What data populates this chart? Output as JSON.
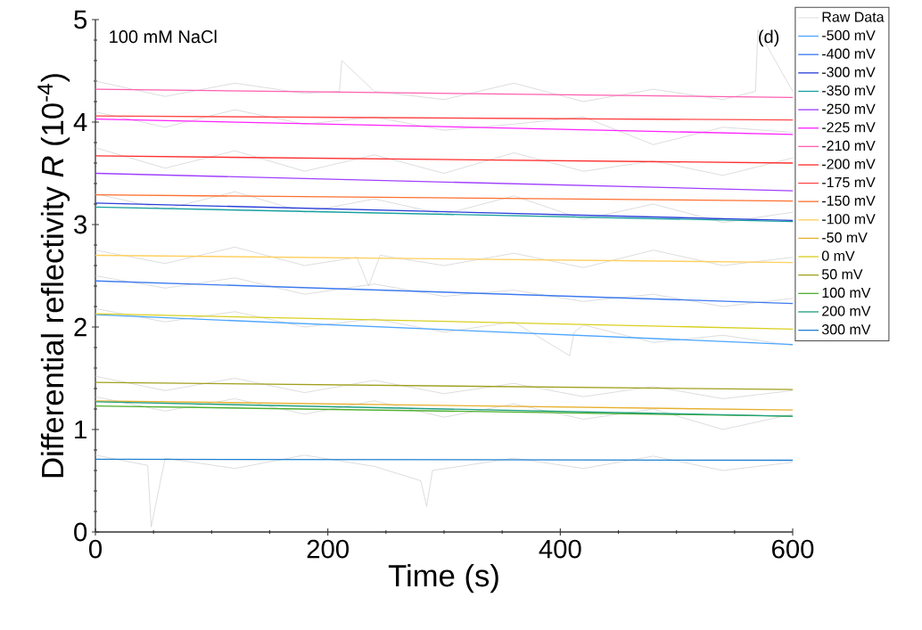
{
  "chart_data": {
    "type": "line",
    "xlabel": "Time (s)",
    "ylabel": "Differential reflectivity *R* (10$^{-4}$)",
    "annotations": [
      "100 mM NaCl",
      "(d)"
    ],
    "x": [
      0,
      600
    ],
    "xlim": [
      0,
      600
    ],
    "ylim": [
      0,
      5
    ],
    "xticks": [
      0,
      200,
      400,
      600
    ],
    "yticks": [
      0,
      1,
      2,
      3,
      4,
      5
    ],
    "legend": "right",
    "series": [
      {
        "name": "Raw Data",
        "color": "#cccccc",
        "x": [
          0,
          60,
          120,
          180,
          210,
          212,
          240,
          300,
          360,
          420,
          480,
          540,
          568,
          570,
          600,
          null,
          0,
          60,
          120,
          180,
          240,
          300,
          360,
          420,
          480,
          540,
          600,
          null,
          0,
          60,
          120,
          180,
          240,
          300,
          360,
          420,
          480,
          540,
          600,
          null,
          0,
          60,
          120,
          180,
          240,
          300,
          360,
          420,
          480,
          540,
          600,
          null,
          0,
          60,
          120,
          180,
          225,
          235,
          245,
          300,
          360,
          420,
          480,
          540,
          600,
          null,
          0,
          60,
          120,
          180,
          240,
          300,
          360,
          420,
          480,
          540,
          600,
          null,
          0,
          60,
          120,
          180,
          240,
          300,
          360,
          408,
          412,
          420,
          480,
          540,
          600,
          null,
          0,
          60,
          120,
          180,
          240,
          300,
          360,
          420,
          480,
          540,
          600,
          null,
          0,
          60,
          120,
          180,
          240,
          300,
          360,
          420,
          480,
          540,
          600,
          null,
          0,
          45,
          48,
          60,
          120,
          180,
          240,
          280,
          285,
          290,
          360,
          420,
          480,
          540,
          600
        ],
        "values": [
          4.4,
          4.25,
          4.38,
          4.28,
          4.3,
          4.6,
          4.3,
          4.22,
          4.38,
          4.2,
          4.32,
          4.22,
          4.3,
          4.9,
          4.3,
          null,
          4.1,
          3.95,
          4.12,
          3.98,
          4.05,
          3.92,
          3.98,
          4.05,
          3.78,
          3.95,
          3.9,
          null,
          3.75,
          3.55,
          3.72,
          3.52,
          3.68,
          3.5,
          3.7,
          3.52,
          3.62,
          3.48,
          3.65,
          null,
          3.3,
          3.15,
          3.32,
          3.12,
          3.25,
          3.1,
          3.28,
          3.05,
          3.2,
          3.02,
          3.12,
          null,
          2.75,
          2.62,
          2.78,
          2.6,
          2.68,
          2.4,
          2.7,
          2.6,
          2.72,
          2.58,
          2.75,
          2.6,
          2.68,
          null,
          2.5,
          2.38,
          2.48,
          2.32,
          2.42,
          2.3,
          2.36,
          2.25,
          2.32,
          2.2,
          2.28,
          null,
          2.18,
          2.05,
          2.15,
          2.0,
          2.08,
          1.95,
          2.05,
          1.72,
          1.95,
          2.02,
          1.85,
          1.92,
          1.82,
          null,
          1.52,
          1.38,
          1.5,
          1.36,
          1.48,
          1.35,
          1.45,
          1.32,
          1.42,
          1.3,
          1.38,
          null,
          1.32,
          1.18,
          1.3,
          1.15,
          1.28,
          1.12,
          1.25,
          1.1,
          1.2,
          1.0,
          1.15,
          null,
          0.75,
          0.65,
          0.05,
          0.72,
          0.62,
          0.75,
          0.64,
          0.5,
          0.25,
          0.6,
          0.72,
          0.62,
          0.74,
          0.6,
          0.68
        ]
      },
      {
        "name": "-500 mV",
        "color": "#4da6ff",
        "values": [
          2.12,
          1.83
        ]
      },
      {
        "name": "-400 mV",
        "color": "#3d7bef",
        "values": [
          2.45,
          2.23
        ]
      },
      {
        "name": "-300 mV",
        "color": "#2a3fd8",
        "values": [
          3.21,
          3.04
        ]
      },
      {
        "name": "-350 mV",
        "color": "#1aa0a0",
        "values": [
          3.17,
          3.03
        ]
      },
      {
        "name": "-250 mV",
        "color": "#a040ff",
        "values": [
          3.5,
          3.33
        ]
      },
      {
        "name": "-225 mV",
        "color": "#ff22ff",
        "values": [
          4.03,
          3.88
        ]
      },
      {
        "name": "-210 mV",
        "color": "#ff5fb0",
        "values": [
          4.32,
          4.24
        ]
      },
      {
        "name": "-200 mV",
        "color": "#ff3030",
        "values": [
          3.67,
          3.6
        ]
      },
      {
        "name": "-175 mV",
        "color": "#ff4a4a",
        "values": [
          4.06,
          4.02
        ]
      },
      {
        "name": "-150 mV",
        "color": "#ff7030",
        "values": [
          3.29,
          3.23
        ]
      },
      {
        "name": "-100 mV",
        "color": "#ffd060",
        "values": [
          2.7,
          2.63
        ]
      },
      {
        "name": "-50 mV",
        "color": "#e8b030",
        "values": [
          1.28,
          1.19
        ]
      },
      {
        "name": "0 mV",
        "color": "#d8d020",
        "values": [
          2.13,
          1.98
        ]
      },
      {
        "name": "50 mV",
        "color": "#a0a020",
        "values": [
          1.46,
          1.39
        ]
      },
      {
        "name": "100 mV",
        "color": "#50b030",
        "values": [
          1.23,
          1.13
        ]
      },
      {
        "name": "200 mV",
        "color": "#20a080",
        "values": [
          1.27,
          1.13
        ]
      },
      {
        "name": "300 mV",
        "color": "#2080d0",
        "values": [
          0.71,
          0.7
        ]
      }
    ]
  }
}
